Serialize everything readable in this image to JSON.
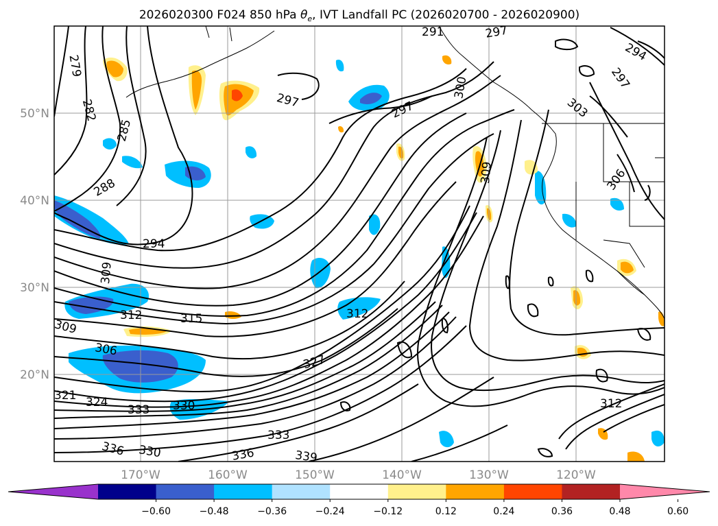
{
  "figure": {
    "title_prefix": "2026020300 F024 850 hPa ",
    "title_symbol": "θ",
    "title_subscript": "e",
    "title_suffix": ", IVT Landfall PC (2026020700 - 2026020900)"
  },
  "map": {
    "lat_labels": [
      "50°N",
      "40°N",
      "30°N",
      "20°N"
    ],
    "lon_labels": [
      "170°W",
      "160°W",
      "150°W",
      "140°W",
      "130°W",
      "120°W"
    ],
    "contour_labels": [
      "279",
      "282",
      "285",
      "288",
      "294",
      "297",
      "297",
      "297",
      "300",
      "303",
      "306",
      "309",
      "312",
      "315",
      "312",
      "306",
      "309",
      "321",
      "324",
      "327",
      "330",
      "333",
      "336",
      "339",
      "336",
      "330",
      "333",
      "312",
      "294",
      "297",
      "291",
      "309"
    ]
  },
  "colorbar": {
    "colors": [
      "#9932cc",
      "#00008b",
      "#3a5fcd",
      "#00bfff",
      "#b0e2ff",
      "#ffffff",
      "#fff08c",
      "#ffa500",
      "#ff4500",
      "#b22222",
      "#ff88aa"
    ],
    "ticks": [
      "−0.60",
      "−0.48",
      "−0.36",
      "−0.24",
      "−0.12",
      "0.12",
      "0.24",
      "0.36",
      "0.48",
      "0.60"
    ],
    "extend": "both"
  }
}
